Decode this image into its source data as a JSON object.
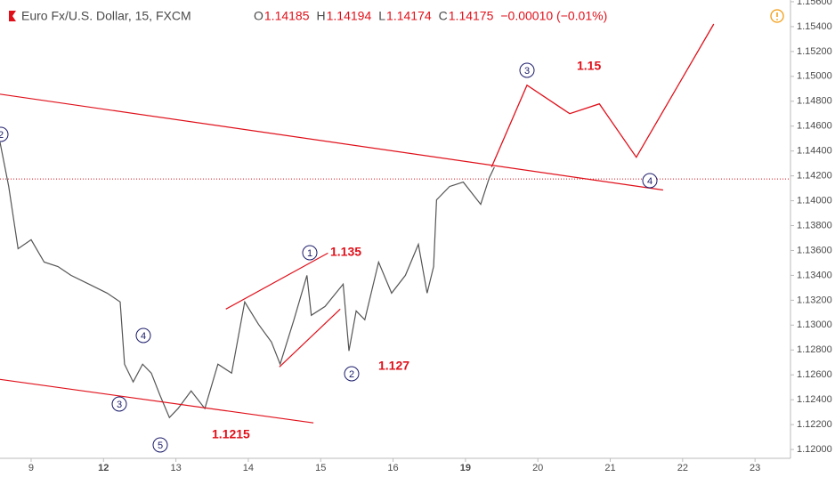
{
  "chart_data": {
    "type": "line",
    "title": "Euro Fx/U.S. Dollar, 15, FXCM",
    "quote": [
      {
        "label": "O",
        "value": 1.14185
      },
      {
        "label": "H",
        "value": 1.14194
      },
      {
        "label": "L",
        "value": 1.14174
      },
      {
        "label": "C",
        "value": 1.14175
      }
    ],
    "change": "−0.00010 (−0.01%)",
    "color": "#555555",
    "x": [
      -0.43,
      -0.31,
      -0.18,
      0,
      0.18,
      0.37,
      0.55,
      0.8,
      1.05,
      1.23,
      1.29,
      1.41,
      1.54,
      1.66,
      1.78,
      1.91,
      2.03,
      2.21,
      2.4,
      2.58,
      2.77,
      2.95,
      3.14,
      3.32,
      3.44,
      3.63,
      3.81,
      3.87,
      4.06,
      4.31,
      4.39,
      4.49,
      4.61,
      4.8,
      4.98,
      5.17,
      5.35,
      5.47,
      5.56,
      5.6,
      5.78,
      5.97,
      6.21,
      6.33,
      6.4
    ],
    "values": [
      1.14471,
      1.14114,
      1.13614,
      1.13686,
      1.13507,
      1.13471,
      1.134,
      1.13329,
      1.13257,
      1.13186,
      1.12686,
      1.12543,
      1.12686,
      1.12614,
      1.12436,
      1.12257,
      1.12329,
      1.12471,
      1.12329,
      1.12686,
      1.12614,
      1.13186,
      1.13007,
      1.12864,
      1.12686,
      1.13043,
      1.134,
      1.13079,
      1.1315,
      1.13329,
      1.12793,
      1.13114,
      1.13043,
      1.13507,
      1.13257,
      1.134,
      1.1365,
      1.13257,
      1.13471,
      1.14007,
      1.14114,
      1.1415,
      1.13971,
      1.14186,
      1.14271
    ],
    "projection": {
      "color": "#e0101a",
      "x": [
        6.36,
        6.85,
        7.44,
        7.85,
        8.36,
        9.43
      ],
      "values": [
        1.14271,
        1.14929,
        1.147,
        1.14779,
        1.1435,
        1.15421
      ]
    },
    "trend_lines": [
      {
        "x": [
          -0.43,
          8.73
        ],
        "values": [
          1.14857,
          1.14086
        ]
      },
      {
        "x": [
          -0.43,
          3.9
        ],
        "values": [
          1.12564,
          1.12214
        ]
      },
      {
        "x": [
          2.69,
          4.1
        ],
        "values": [
          1.13129,
          1.13579
        ]
      },
      {
        "x": [
          3.43,
          4.27
        ],
        "values": [
          1.12664,
          1.13129
        ]
      }
    ],
    "wave_labels": [
      "2",
      "4",
      "3",
      "5",
      "1",
      "2",
      "3",
      "4"
    ],
    "level_labels": [
      "1.135",
      "1.127",
      "1.1215",
      "1.15"
    ],
    "xlim": [
      -0.43,
      10.49
    ],
    "xticks": [
      {
        "value": 0,
        "label": "9"
      },
      {
        "value": 1,
        "label": "12"
      },
      {
        "value": 2,
        "label": "13"
      },
      {
        "value": 3,
        "label": "14"
      },
      {
        "value": 4,
        "label": "15"
      },
      {
        "value": 5,
        "label": "16"
      },
      {
        "value": 6,
        "label": "19"
      },
      {
        "value": 7,
        "label": "20"
      },
      {
        "value": 8,
        "label": "21"
      },
      {
        "value": 9,
        "label": "22"
      },
      {
        "value": 10,
        "label": "23"
      }
    ],
    "ylim": [
      1.11929,
      1.15614
    ],
    "yticks": [
      {
        "value": 1.12,
        "label": "1.12000"
      },
      {
        "value": 1.122,
        "label": "1.12200"
      },
      {
        "value": 1.124,
        "label": "1.12400"
      },
      {
        "value": 1.126,
        "label": "1.12600"
      },
      {
        "value": 1.128,
        "label": "1.12800"
      },
      {
        "value": 1.13,
        "label": "1.13000"
      },
      {
        "value": 1.132,
        "label": "1.13200"
      },
      {
        "value": 1.134,
        "label": "1.13400"
      },
      {
        "value": 1.136,
        "label": "1.13600"
      },
      {
        "value": 1.138,
        "label": "1.13800"
      },
      {
        "value": 1.14,
        "label": "1.14000"
      },
      {
        "value": 1.142,
        "label": "1.14200"
      },
      {
        "value": 1.144,
        "label": "1.14400"
      },
      {
        "value": 1.146,
        "label": "1.14600"
      },
      {
        "value": 1.148,
        "label": "1.14800"
      },
      {
        "value": 1.15,
        "label": "1.15000"
      },
      {
        "value": 1.152,
        "label": "1.15200"
      },
      {
        "value": 1.154,
        "label": "1.15400"
      },
      {
        "value": 1.156,
        "label": "1.15600"
      }
    ]
  }
}
